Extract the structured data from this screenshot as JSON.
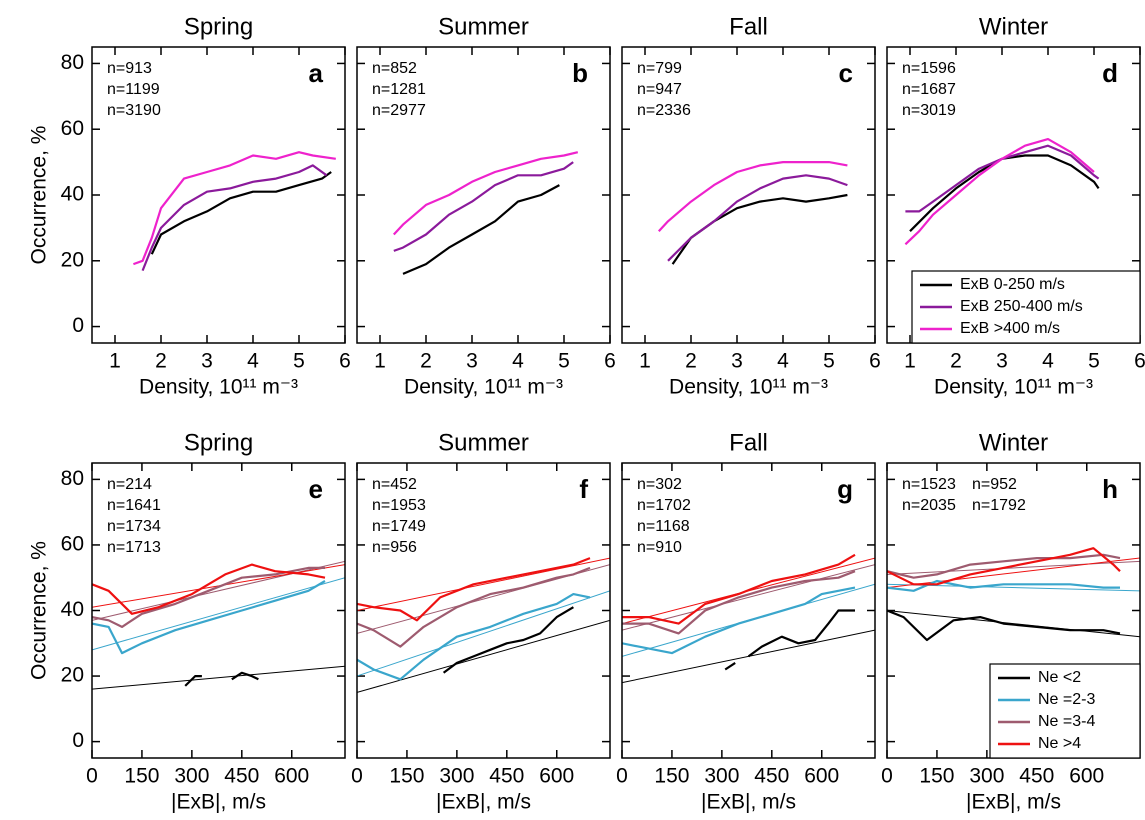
{
  "chart_data": [
    {
      "type": "line",
      "title": "Spring",
      "label": "a",
      "xlabel": "Density, 10¹¹ m⁻³",
      "ylabel": "Occurrence, %",
      "xlim": [
        0.5,
        6
      ],
      "ylim": [
        -5,
        85
      ],
      "xticks": [
        1,
        2,
        3,
        4,
        5,
        6
      ],
      "yticks": [
        0,
        20,
        40,
        60,
        80
      ],
      "annotations": [
        {
          "text": "n=913",
          "color": "#000000"
        },
        {
          "text": "n=1199",
          "color": "#8b1a9b"
        },
        {
          "text": "n=3190",
          "color": "#ee22cc"
        }
      ],
      "series": [
        {
          "color": "#000000",
          "x": [
            1.8,
            2,
            2.5,
            3,
            3.5,
            4,
            4.5,
            5,
            5.5,
            5.7
          ],
          "values": [
            22,
            28,
            32,
            35,
            39,
            41,
            41,
            43,
            45,
            47
          ]
        },
        {
          "color": "#8b1a9b",
          "x": [
            1.6,
            1.8,
            2,
            2.5,
            3,
            3.5,
            4,
            4.5,
            5,
            5.3,
            5.6
          ],
          "values": [
            17,
            24,
            30,
            37,
            41,
            42,
            44,
            45,
            47,
            49,
            46
          ]
        },
        {
          "color": "#ee22cc",
          "x": [
            1.4,
            1.6,
            1.8,
            2,
            2.5,
            3,
            3.5,
            4,
            4.5,
            5,
            5.3,
            5.8
          ],
          "values": [
            19,
            20,
            27,
            36,
            45,
            47,
            49,
            52,
            51,
            53,
            52,
            51
          ]
        }
      ]
    },
    {
      "type": "line",
      "title": "Summer",
      "label": "b",
      "xlabel": "Density, 10¹¹ m⁻³",
      "xlim": [
        0.5,
        6
      ],
      "ylim": [
        -5,
        85
      ],
      "xticks": [
        1,
        2,
        3,
        4,
        5,
        6
      ],
      "yticks": [
        0,
        20,
        40,
        60,
        80
      ],
      "annotations": [
        {
          "text": "n=852",
          "color": "#000000"
        },
        {
          "text": "n=1281",
          "color": "#8b1a9b"
        },
        {
          "text": "n=2977",
          "color": "#ee22cc"
        }
      ],
      "series": [
        {
          "color": "#000000",
          "x": [
            1.5,
            2,
            2.5,
            3,
            3.5,
            4,
            4.5,
            4.9
          ],
          "values": [
            16,
            19,
            24,
            28,
            32,
            38,
            40,
            43
          ]
        },
        {
          "color": "#8b1a9b",
          "x": [
            1.3,
            1.5,
            2,
            2.5,
            3,
            3.5,
            4,
            4.5,
            5,
            5.2
          ],
          "values": [
            23,
            24,
            28,
            34,
            38,
            43,
            46,
            46,
            48,
            50
          ]
        },
        {
          "color": "#ee22cc",
          "x": [
            1.3,
            1.5,
            2,
            2.5,
            3,
            3.5,
            4,
            4.5,
            5,
            5.3
          ],
          "values": [
            28,
            31,
            37,
            40,
            44,
            47,
            49,
            51,
            52,
            53
          ]
        }
      ]
    },
    {
      "type": "line",
      "title": "Fall",
      "label": "c",
      "xlabel": "Density, 10¹¹ m⁻³",
      "xlim": [
        0.5,
        6
      ],
      "ylim": [
        -5,
        85
      ],
      "xticks": [
        1,
        2,
        3,
        4,
        5,
        6
      ],
      "yticks": [
        0,
        20,
        40,
        60,
        80
      ],
      "annotations": [
        {
          "text": "n=799",
          "color": "#000000"
        },
        {
          "text": "n=947",
          "color": "#8b1a9b"
        },
        {
          "text": "n=2336",
          "color": "#ee22cc"
        }
      ],
      "series": [
        {
          "color": "#000000",
          "x": [
            1.6,
            2,
            2.5,
            3,
            3.5,
            4,
            4.5,
            5,
            5.4
          ],
          "values": [
            19,
            27,
            32,
            36,
            38,
            39,
            38,
            39,
            40
          ]
        },
        {
          "color": "#8b1a9b",
          "x": [
            1.5,
            2,
            2.5,
            3,
            3.5,
            4,
            4.5,
            5,
            5.4
          ],
          "values": [
            20,
            27,
            32,
            38,
            42,
            45,
            46,
            45,
            43
          ]
        },
        {
          "color": "#ee22cc",
          "x": [
            1.3,
            1.5,
            2,
            2.5,
            3,
            3.5,
            4,
            4.5,
            5,
            5.4
          ],
          "values": [
            29,
            32,
            38,
            43,
            47,
            49,
            50,
            50,
            50,
            49
          ]
        }
      ]
    },
    {
      "type": "line",
      "title": "Winter",
      "label": "d",
      "xlabel": "Density, 10¹¹ m⁻³",
      "legend": "lower right",
      "xlim": [
        0.5,
        6
      ],
      "ylim": [
        -5,
        85
      ],
      "xticks": [
        1,
        2,
        3,
        4,
        5,
        6
      ],
      "yticks": [
        0,
        20,
        40,
        60,
        80
      ],
      "annotations": [
        {
          "text": "n=1596",
          "color": "#000000"
        },
        {
          "text": "n=1687",
          "color": "#8b1a9b"
        },
        {
          "text": "n=3019",
          "color": "#ee22cc"
        }
      ],
      "series": [
        {
          "name": "ExB 0-250 m/s",
          "color": "#000000",
          "x": [
            1.0,
            1.5,
            2,
            2.5,
            3,
            3.5,
            4,
            4.5,
            5,
            5.1
          ],
          "values": [
            29,
            36,
            42,
            47,
            51,
            52,
            52,
            49,
            44,
            42
          ]
        },
        {
          "name": "ExB 250-400 m/s",
          "color": "#8b1a9b",
          "x": [
            0.9,
            1.2,
            1.5,
            2,
            2.5,
            3,
            3.5,
            4,
            4.5,
            5,
            5.1
          ],
          "values": [
            35,
            35,
            38,
            43,
            48,
            51,
            53,
            55,
            52,
            46,
            45
          ]
        },
        {
          "name": "ExB >400 m/s",
          "color": "#ee22cc",
          "x": [
            0.9,
            1.2,
            1.5,
            2,
            2.5,
            3,
            3.5,
            4,
            4.5,
            5
          ],
          "values": [
            25,
            29,
            34,
            40,
            46,
            51,
            55,
            57,
            53,
            47
          ]
        }
      ]
    },
    {
      "type": "line",
      "title": "Spring",
      "label": "e",
      "xlabel": "|ExB|, m/s",
      "ylabel": "Occurrence, %",
      "xlim": [
        0,
        760
      ],
      "ylim": [
        -5,
        85
      ],
      "xticks": [
        0,
        150,
        300,
        450,
        600
      ],
      "yticks": [
        0,
        20,
        40,
        60,
        80
      ],
      "fit_x": [
        0,
        760
      ],
      "annotations": [
        {
          "text": "n=214",
          "color": "#000000"
        },
        {
          "text": "n=1641",
          "color": "#3aa6cc"
        },
        {
          "text": "n=1734",
          "color": "#9e5b6f"
        },
        {
          "text": "n=1713",
          "color": "#ee1111"
        }
      ],
      "series": [
        {
          "color": "#000000",
          "x": [
            280,
            310,
            330,
            null,
            420,
            450,
            480,
            500
          ],
          "values": [
            17,
            20,
            20,
            null,
            19,
            21,
            20,
            19
          ],
          "fit": [
            16,
            23
          ]
        },
        {
          "color": "#3aa6cc",
          "x": [
            0,
            50,
            90,
            150,
            250,
            350,
            450,
            550,
            650,
            700
          ],
          "values": [
            36,
            35,
            27,
            30,
            34,
            37,
            40,
            43,
            46,
            49
          ],
          "fit": [
            28,
            50
          ]
        },
        {
          "color": "#9e5b6f",
          "x": [
            0,
            50,
            90,
            150,
            250,
            350,
            450,
            550,
            650,
            700
          ],
          "values": [
            38,
            37,
            35,
            39,
            42,
            46,
            50,
            51,
            53,
            53
          ],
          "fit": [
            37,
            55
          ]
        },
        {
          "color": "#ee1111",
          "x": [
            0,
            50,
            120,
            200,
            300,
            400,
            480,
            550,
            650,
            700
          ],
          "values": [
            48,
            46,
            39,
            41,
            45,
            51,
            54,
            52,
            51,
            50
          ],
          "fit": [
            41,
            54
          ]
        }
      ]
    },
    {
      "type": "line",
      "title": "Summer",
      "label": "f",
      "xlabel": "|ExB|, m/s",
      "xlim": [
        0,
        760
      ],
      "ylim": [
        -5,
        85
      ],
      "xticks": [
        0,
        150,
        300,
        450,
        600
      ],
      "yticks": [
        0,
        20,
        40,
        60,
        80
      ],
      "fit_x": [
        0,
        760
      ],
      "annotations": [
        {
          "text": "n=452",
          "color": "#000000"
        },
        {
          "text": "n=1953",
          "color": "#3aa6cc"
        },
        {
          "text": "n=1749",
          "color": "#9e5b6f"
        },
        {
          "text": "n=956",
          "color": "#ee1111"
        }
      ],
      "series": [
        {
          "color": "#000000",
          "x": [
            260,
            300,
            350,
            400,
            450,
            500,
            550,
            600,
            650
          ],
          "values": [
            21,
            24,
            26,
            28,
            30,
            31,
            33,
            38,
            41
          ],
          "fit": [
            15,
            37
          ]
        },
        {
          "color": "#3aa6cc",
          "x": [
            0,
            50,
            130,
            200,
            300,
            400,
            500,
            600,
            650,
            700
          ],
          "values": [
            25,
            22,
            19,
            25,
            32,
            35,
            39,
            42,
            45,
            44
          ],
          "fit": [
            20,
            46
          ]
        },
        {
          "color": "#9e5b6f",
          "x": [
            0,
            50,
            130,
            200,
            300,
            400,
            500,
            600,
            650,
            700
          ],
          "values": [
            36,
            34,
            29,
            35,
            41,
            45,
            47,
            50,
            51,
            53
          ],
          "fit": [
            33,
            54
          ]
        },
        {
          "color": "#ee1111",
          "x": [
            0,
            50,
            130,
            180,
            250,
            350,
            450,
            550,
            650,
            700
          ],
          "values": [
            42,
            41,
            40,
            37,
            44,
            48,
            50,
            52,
            54,
            56
          ],
          "fit": [
            40,
            56
          ]
        }
      ]
    },
    {
      "type": "line",
      "title": "Fall",
      "label": "g",
      "xlabel": "|ExB|, m/s",
      "xlim": [
        0,
        760
      ],
      "ylim": [
        -5,
        85
      ],
      "xticks": [
        0,
        150,
        300,
        450,
        600
      ],
      "yticks": [
        0,
        20,
        40,
        60,
        80
      ],
      "fit_x": [
        0,
        760
      ],
      "annotations": [
        {
          "text": "n=302",
          "color": "#000000"
        },
        {
          "text": "n=1702",
          "color": "#3aa6cc"
        },
        {
          "text": "n=1168",
          "color": "#9e5b6f"
        },
        {
          "text": "n=910",
          "color": "#ee1111"
        }
      ],
      "series": [
        {
          "color": "#000000",
          "x": [
            310,
            340,
            null,
            380,
            420,
            480,
            530,
            580,
            620,
            650,
            700
          ],
          "values": [
            22,
            24,
            null,
            26,
            29,
            32,
            30,
            31,
            36,
            40,
            40
          ],
          "fit": [
            18,
            34
          ]
        },
        {
          "color": "#3aa6cc",
          "x": [
            0,
            50,
            150,
            250,
            350,
            450,
            550,
            600,
            650,
            700
          ],
          "values": [
            30,
            29,
            27,
            32,
            36,
            39,
            42,
            45,
            46,
            47
          ],
          "fit": [
            26,
            48
          ]
        },
        {
          "color": "#9e5b6f",
          "x": [
            0,
            80,
            170,
            250,
            350,
            450,
            550,
            650,
            700
          ],
          "values": [
            36,
            36,
            33,
            40,
            44,
            47,
            49,
            50,
            52
          ],
          "fit": [
            34,
            54
          ]
        },
        {
          "color": "#ee1111",
          "x": [
            0,
            80,
            170,
            250,
            350,
            450,
            550,
            650,
            700
          ],
          "values": [
            38,
            38,
            36,
            42,
            45,
            49,
            51,
            54,
            57
          ],
          "fit": [
            36,
            56
          ]
        }
      ]
    },
    {
      "type": "line",
      "title": "Winter",
      "label": "h",
      "xlabel": "|ExB|, m/s",
      "legend": "lower right",
      "xlim": [
        0,
        760
      ],
      "ylim": [
        -5,
        85
      ],
      "xticks": [
        0,
        150,
        300,
        450,
        600
      ],
      "yticks": [
        0,
        20,
        40,
        60,
        80
      ],
      "fit_x": [
        0,
        760
      ],
      "annotations": [
        {
          "text": "n=1523",
          "color": "#000000"
        },
        {
          "text": "n=2035",
          "color": "#3aa6cc"
        },
        {
          "text": "n=952",
          "color": "#ee1111"
        },
        {
          "text": "n=1792",
          "color": "#9e5b6f"
        }
      ],
      "series": [
        {
          "name": "Ne <2",
          "color": "#000000",
          "x": [
            0,
            50,
            120,
            200,
            280,
            350,
            450,
            550,
            650,
            700
          ],
          "values": [
            40,
            38,
            31,
            37,
            38,
            36,
            35,
            34,
            34,
            33
          ],
          "fit": [
            40,
            32
          ]
        },
        {
          "name": "Ne =2-3",
          "color": "#3aa6cc",
          "x": [
            0,
            80,
            150,
            250,
            350,
            450,
            550,
            650,
            700
          ],
          "values": [
            47,
            46,
            49,
            47,
            48,
            48,
            48,
            47,
            47
          ],
          "fit": [
            48,
            46
          ]
        },
        {
          "name": "Ne =3-4",
          "color": "#9e5b6f",
          "x": [
            0,
            80,
            150,
            250,
            350,
            450,
            550,
            650,
            700
          ],
          "values": [
            52,
            50,
            51,
            54,
            55,
            56,
            56,
            57,
            56
          ],
          "fit": [
            51,
            55
          ]
        },
        {
          "name": "Ne >4",
          "color": "#ee1111",
          "x": [
            0,
            80,
            150,
            250,
            350,
            450,
            550,
            620,
            680,
            700
          ],
          "values": [
            52,
            48,
            48,
            51,
            53,
            55,
            57,
            59,
            54,
            52
          ],
          "fit": [
            47,
            56
          ]
        }
      ]
    }
  ]
}
